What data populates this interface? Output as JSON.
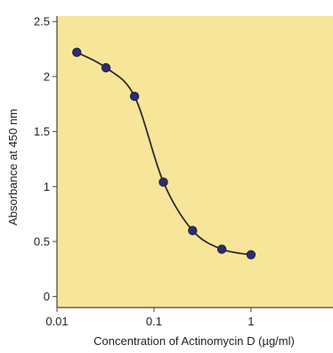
{
  "chart_data": {
    "type": "line",
    "title": "",
    "xlabel": "Concentration of Actinomycin D (µg/ml)",
    "ylabel": "Absorbance at 450 nm",
    "xscale": "log",
    "xlim": [
      0.01,
      7
    ],
    "ylim": [
      -0.1,
      2.55
    ],
    "x_ticks": [
      "0.01",
      "0.1",
      "1"
    ],
    "y_ticks": [
      "0",
      "0.5",
      "1",
      "1.5",
      "2",
      "2.5"
    ],
    "grid": false,
    "legend": "none",
    "series": [
      {
        "x": [
          0.016,
          0.032,
          0.063,
          0.125,
          0.25,
          0.5,
          1
        ],
        "y": [
          2.22,
          2.08,
          1.82,
          1.04,
          0.6,
          0.43,
          0.38
        ]
      }
    ]
  },
  "colors": {
    "plot_background": "#f7e69a",
    "curve": "#2b2b2b",
    "marker": "#2b2d6e",
    "axis": "#444444"
  }
}
